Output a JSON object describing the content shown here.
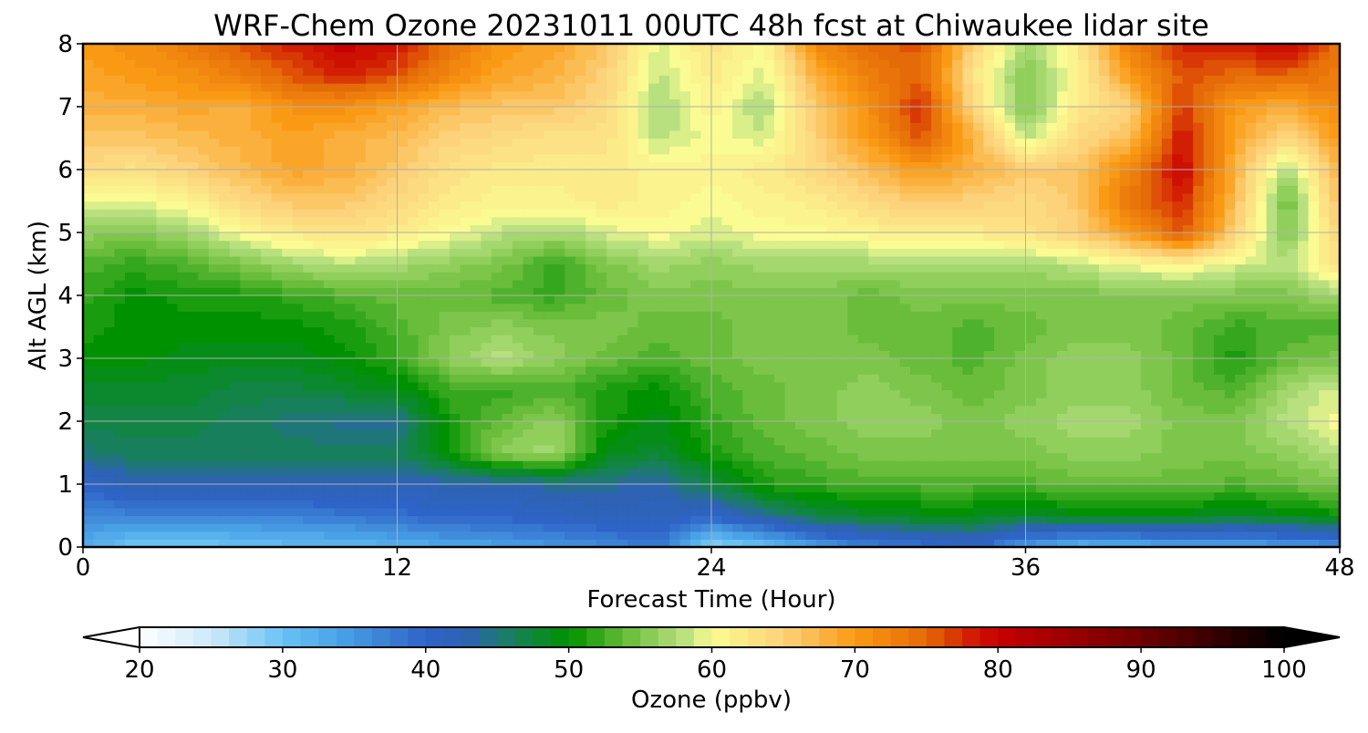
{
  "chart_data": {
    "type": "heatmap",
    "title": "WRF-Chem Ozone  20231011 00UTC 48h fcst at Chiwaukee lidar site",
    "xlabel": "Forecast Time (Hour)",
    "ylabel": "Alt AGL (km)",
    "xlim": [
      0,
      48
    ],
    "ylim": [
      0,
      8
    ],
    "x_ticks": [
      0,
      12,
      24,
      36,
      48
    ],
    "x_tick_labels": [
      "0",
      "12",
      "24",
      "36",
      "48"
    ],
    "y_ticks": [
      0,
      1,
      2,
      3,
      4,
      5,
      6,
      7,
      8
    ],
    "y_tick_labels": [
      "0",
      "1",
      "2",
      "3",
      "4",
      "5",
      "6",
      "7",
      "8"
    ],
    "grid": true,
    "x": [
      0,
      2,
      4,
      6,
      8,
      10,
      12,
      14,
      16,
      18,
      20,
      22,
      24,
      26,
      28,
      30,
      32,
      34,
      36,
      38,
      40,
      42,
      44,
      46,
      48
    ],
    "y": [
      0,
      0.5,
      1,
      1.5,
      2,
      2.5,
      3,
      3.5,
      4,
      4.5,
      5,
      5.5,
      6,
      6.5,
      7,
      7.5,
      8
    ],
    "z": [
      [
        33,
        29,
        29,
        30,
        31,
        31,
        32,
        33,
        34,
        35,
        36,
        38,
        27,
        30,
        34,
        37,
        38,
        40,
        34,
        31,
        32,
        33,
        33,
        34,
        35
      ],
      [
        36,
        37,
        37,
        37,
        37,
        38,
        39,
        40,
        40,
        41,
        42,
        42,
        40,
        44,
        47,
        48,
        49,
        49,
        48,
        49,
        49,
        49,
        48,
        49,
        50
      ],
      [
        40,
        43,
        43,
        43,
        43,
        43,
        42,
        43,
        43,
        44,
        44,
        43,
        47,
        51,
        52,
        53,
        53,
        53,
        53,
        54,
        54,
        54,
        53,
        54,
        55
      ],
      [
        45,
        46,
        46,
        46,
        46,
        46,
        46,
        50,
        56,
        57,
        49,
        48,
        51,
        53,
        54,
        55,
        55,
        55,
        55,
        56,
        56,
        55,
        55,
        56,
        58
      ],
      [
        47,
        47,
        47,
        46,
        45,
        44,
        44,
        51,
        54,
        56,
        51,
        49,
        52,
        54,
        55,
        56,
        56,
        55,
        56,
        57,
        57,
        55,
        55,
        58,
        60
      ],
      [
        48,
        48,
        48,
        47,
        47,
        48,
        49,
        52,
        52,
        53,
        51,
        50,
        53,
        54,
        55,
        56,
        55,
        54,
        55,
        56,
        56,
        54,
        53,
        57,
        59
      ],
      [
        50,
        50,
        49,
        49,
        49,
        50,
        52,
        56,
        58,
        56,
        54,
        53,
        54,
        55,
        55,
        55,
        54,
        53,
        55,
        56,
        56,
        54,
        51,
        54,
        55
      ],
      [
        51,
        50,
        50,
        50,
        50,
        51,
        53,
        55,
        56,
        55,
        55,
        54,
        54,
        55,
        55,
        54,
        54,
        53,
        54,
        55,
        55,
        54,
        52,
        53,
        53
      ],
      [
        52,
        50,
        51,
        51,
        52,
        53,
        54,
        54,
        53,
        52,
        54,
        55,
        55,
        55,
        55,
        54,
        55,
        55,
        55,
        55,
        55,
        55,
        55,
        55,
        57
      ],
      [
        53,
        52,
        53,
        55,
        57,
        58,
        57,
        56,
        55,
        52,
        55,
        57,
        56,
        57,
        57,
        57,
        57,
        57,
        57,
        58,
        60,
        61,
        59,
        58,
        63
      ],
      [
        56,
        55,
        57,
        60,
        62,
        63,
        62,
        60,
        58,
        57,
        59,
        60,
        59,
        60,
        60,
        61,
        62,
        62,
        63,
        65,
        70,
        76,
        65,
        55,
        65
      ],
      [
        60,
        59,
        61,
        64,
        66,
        66,
        64,
        62,
        61,
        61,
        62,
        61,
        60,
        61,
        62,
        64,
        66,
        65,
        64,
        66,
        74,
        78,
        67,
        54,
        67
      ],
      [
        64,
        63,
        65,
        67,
        69,
        68,
        66,
        63,
        62,
        62,
        62,
        61,
        61,
        62,
        64,
        67,
        70,
        68,
        66,
        66,
        72,
        80,
        68,
        57,
        68
      ],
      [
        66,
        66,
        67,
        68,
        69,
        68,
        67,
        65,
        64,
        63,
        63,
        58,
        60,
        59,
        65,
        70,
        76,
        68,
        58,
        64,
        67,
        79,
        69,
        64,
        70
      ],
      [
        68,
        68,
        69,
        68,
        71,
        71,
        69,
        67,
        66,
        66,
        64,
        57,
        61,
        57,
        66,
        71,
        78,
        64,
        55,
        62,
        65,
        77,
        70,
        68,
        72
      ],
      [
        69,
        70,
        71,
        73,
        76,
        78,
        76,
        72,
        69,
        68,
        65,
        58,
        62,
        59,
        68,
        73,
        75,
        63,
        55,
        61,
        70,
        76,
        75,
        75,
        73
      ],
      [
        70,
        71,
        73,
        76,
        78,
        80,
        79,
        74,
        70,
        69,
        66,
        59,
        63,
        60,
        72,
        75,
        76,
        65,
        57,
        62,
        73,
        78,
        78,
        80,
        74
      ]
    ],
    "colorbar": {
      "label": "Ozone  (ppbv)",
      "min": 20,
      "max": 100,
      "ticks": [
        20,
        30,
        40,
        50,
        60,
        70,
        80,
        90,
        100
      ],
      "tick_labels": [
        "20",
        "30",
        "40",
        "50",
        "60",
        "70",
        "80",
        "90",
        "100"
      ],
      "extend": "both",
      "colors": [
        [
          20,
          "#ffffff"
        ],
        [
          25,
          "#cde9fa"
        ],
        [
          30,
          "#69c2f4"
        ],
        [
          34,
          "#4aa2e6"
        ],
        [
          40,
          "#2e63c7"
        ],
        [
          43,
          "#2d63b2"
        ],
        [
          46,
          "#187f5c"
        ],
        [
          50,
          "#009100"
        ],
        [
          54,
          "#69bd3a"
        ],
        [
          58,
          "#b8e07f"
        ],
        [
          60,
          "#fbfb93"
        ],
        [
          65,
          "#fcd27a"
        ],
        [
          70,
          "#fa9a14"
        ],
        [
          75,
          "#e56a08"
        ],
        [
          78,
          "#d21f03"
        ],
        [
          80,
          "#c70000"
        ],
        [
          90,
          "#6e0000"
        ],
        [
          100,
          "#000000"
        ]
      ]
    }
  }
}
